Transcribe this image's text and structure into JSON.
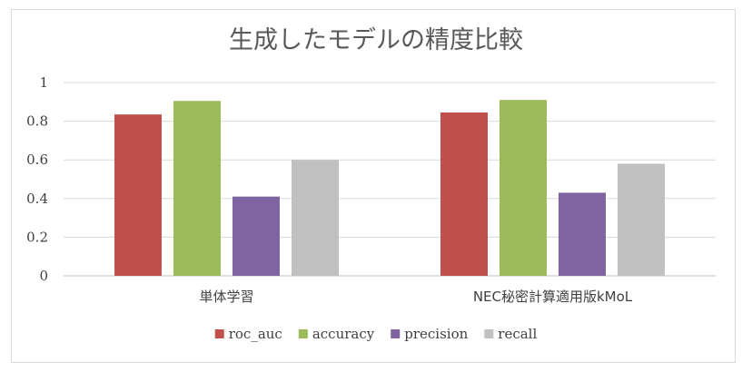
{
  "chart_data": {
    "type": "bar",
    "title": "生成したモデルの精度比較",
    "categories": [
      "単体学習",
      "NEC秘密計算適用版kMoL"
    ],
    "series": [
      {
        "name": "roc_auc",
        "values": [
          0.835,
          0.845
        ],
        "color": "#c0504d"
      },
      {
        "name": "accuracy",
        "values": [
          0.905,
          0.91
        ],
        "color": "#9bbb59"
      },
      {
        "name": "precision",
        "values": [
          0.41,
          0.43
        ],
        "color": "#8064a2"
      },
      {
        "name": "recall",
        "values": [
          0.6,
          0.58
        ],
        "color": "#c0c0c0"
      }
    ],
    "ylim": [
      0,
      1
    ],
    "yticks": [
      "0",
      "0.2",
      "0.4",
      "0.6",
      "0.8",
      "1"
    ],
    "ytick_values": [
      0,
      0.2,
      0.4,
      0.6,
      0.8,
      1
    ],
    "grid": true,
    "legend_position": "bottom",
    "xlabel": "",
    "ylabel": ""
  }
}
